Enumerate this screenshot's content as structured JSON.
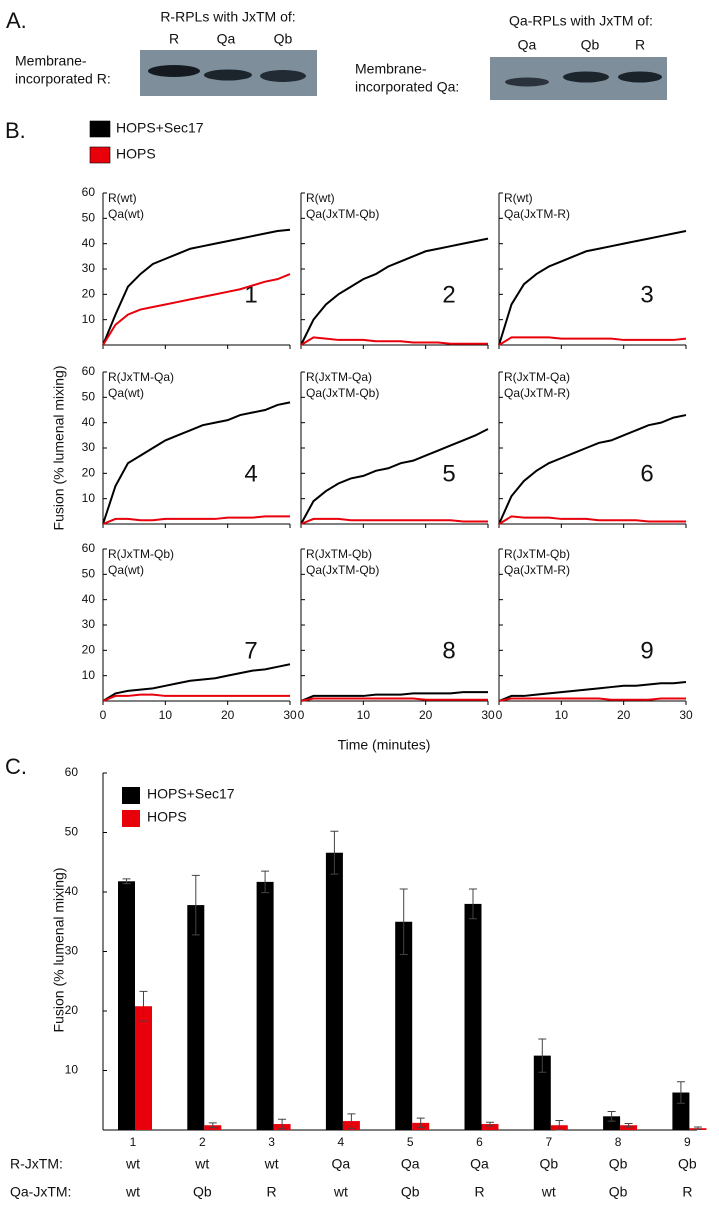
{
  "panel_a": {
    "label": "A.",
    "blots": [
      {
        "title": "R-RPLs with JxTM of:",
        "lanes": [
          "R",
          "Qa",
          "Qb"
        ],
        "row_label": [
          "Membrane-",
          "incorporated R:"
        ]
      },
      {
        "title": "Qa-RPLs with JxTM of:",
        "lanes": [
          "Qa",
          "Qb",
          "R"
        ],
        "row_label": [
          "Membrane-",
          "incorporated Qa:"
        ]
      }
    ]
  },
  "chart_data": [
    {
      "type": "line",
      "panel_label": "B.",
      "xlabel": "Time (minutes)",
      "ylabel": "Fusion (% lumenal mixing)",
      "legend": [
        {
          "name": "HOPS+Sec17",
          "color": "#000000"
        },
        {
          "name": "HOPS",
          "color": "#e8000b"
        }
      ],
      "xlim": [
        0,
        30
      ],
      "ylim": [
        0,
        60
      ],
      "xticks": [
        0,
        10,
        20,
        30
      ],
      "yticks": [
        10,
        20,
        30,
        40,
        50,
        60
      ],
      "x": [
        0,
        2,
        4,
        6,
        8,
        10,
        12,
        14,
        16,
        18,
        20,
        22,
        24,
        26,
        28,
        30
      ],
      "panels": [
        {
          "annotation": [
            "R(wt)",
            "Qa(wt)"
          ],
          "number": "1",
          "series": [
            {
              "values": [
                0,
                12,
                23,
                28,
                32,
                34,
                36,
                38,
                39,
                40,
                41,
                42,
                43,
                44,
                45,
                45.5
              ]
            },
            {
              "values": [
                0,
                8,
                12,
                14,
                15,
                16,
                17,
                18,
                19,
                20,
                21,
                22,
                23.5,
                25,
                26,
                28
              ]
            }
          ]
        },
        {
          "annotation": [
            "R(wt)",
            "Qa(JxTM-Qb)"
          ],
          "number": "2",
          "series": [
            {
              "values": [
                0,
                10,
                16,
                20,
                23,
                26,
                28,
                31,
                33,
                35,
                37,
                38,
                39,
                40,
                41,
                42
              ]
            },
            {
              "values": [
                0,
                3,
                2.5,
                2,
                2,
                2,
                1.5,
                1.5,
                1.5,
                1,
                1,
                1,
                0.5,
                0.5,
                0.5,
                0.5
              ]
            }
          ]
        },
        {
          "annotation": [
            "R(wt)",
            "Qa(JxTM-R)"
          ],
          "number": "3",
          "series": [
            {
              "values": [
                0,
                16,
                24,
                28,
                31,
                33,
                35,
                37,
                38,
                39,
                40,
                41,
                42,
                43,
                44,
                45
              ]
            },
            {
              "values": [
                0,
                3,
                3,
                3,
                3,
                2.5,
                2.5,
                2.5,
                2.5,
                2.5,
                2,
                2,
                2,
                2,
                2,
                2.5
              ]
            }
          ]
        },
        {
          "annotation": [
            "R(JxTM-Qa)",
            "Qa(wt)"
          ],
          "number": "4",
          "series": [
            {
              "values": [
                0,
                15,
                24,
                27,
                30,
                33,
                35,
                37,
                39,
                40,
                41,
                43,
                44,
                45,
                47,
                48
              ]
            },
            {
              "values": [
                0,
                2,
                2,
                1.5,
                1.5,
                2,
                2,
                2,
                2,
                2,
                2.5,
                2.5,
                2.5,
                3,
                3,
                3
              ]
            }
          ]
        },
        {
          "annotation": [
            "R(JxTM-Qa)",
            "Qa(JxTM-Qb)"
          ],
          "number": "5",
          "series": [
            {
              "values": [
                0,
                9,
                13,
                16,
                18,
                19,
                21,
                22,
                24,
                25,
                27,
                29,
                31,
                33,
                35,
                37.5
              ]
            },
            {
              "values": [
                0,
                2,
                2,
                2,
                1.5,
                1.5,
                1.5,
                1.5,
                1.5,
                1.5,
                1.5,
                1.5,
                1.5,
                1,
                1,
                1
              ]
            }
          ]
        },
        {
          "annotation": [
            "R(JxTM-Qa)",
            "Qa(JxTM-R)"
          ],
          "number": "6",
          "series": [
            {
              "values": [
                0,
                11,
                17,
                21,
                24,
                26,
                28,
                30,
                32,
                33,
                35,
                37,
                39,
                40,
                42,
                43
              ]
            },
            {
              "values": [
                0,
                3,
                2.5,
                2.5,
                2.5,
                2,
                2,
                2,
                1.5,
                1.5,
                1.5,
                1.5,
                1,
                1,
                1,
                1
              ]
            }
          ]
        },
        {
          "annotation": [
            "R(JxTM-Qb)",
            "Qa(wt)"
          ],
          "number": "7",
          "series": [
            {
              "values": [
                0,
                3,
                4,
                4.5,
                5,
                6,
                7,
                8,
                8.5,
                9,
                10,
                11,
                12,
                12.5,
                13.5,
                14.5
              ]
            },
            {
              "values": [
                0,
                2,
                2,
                2.5,
                2.5,
                2,
                2,
                2,
                2,
                2,
                2,
                2,
                2,
                2,
                2,
                2
              ]
            }
          ]
        },
        {
          "annotation": [
            "R(JxTM-Qb)",
            "Qa(JxTM-Qb)"
          ],
          "number": "8",
          "series": [
            {
              "values": [
                0,
                2,
                2,
                2,
                2,
                2,
                2.5,
                2.5,
                2.5,
                3,
                3,
                3,
                3,
                3.5,
                3.5,
                3.5
              ]
            },
            {
              "values": [
                0,
                1,
                1,
                1,
                1,
                1,
                1,
                1,
                1,
                1,
                0.5,
                0.5,
                0.5,
                0.5,
                0.5,
                0.5
              ]
            }
          ]
        },
        {
          "annotation": [
            "R(JxTM-Qb)",
            "Qa(JxTM-R)"
          ],
          "number": "9",
          "series": [
            {
              "values": [
                0,
                2,
                2,
                2.5,
                3,
                3.5,
                4,
                4.5,
                5,
                5.5,
                6,
                6,
                6.5,
                7,
                7,
                7.5
              ]
            },
            {
              "values": [
                0,
                1,
                1,
                1,
                1,
                1,
                1,
                1,
                1,
                0.5,
                0.5,
                0.5,
                0.5,
                1,
                1,
                1
              ]
            }
          ]
        }
      ]
    },
    {
      "type": "bar",
      "panel_label": "C.",
      "ylabel": "Fusion (% lumenal mixing)",
      "ylim": [
        0,
        60
      ],
      "yticks": [
        10,
        20,
        30,
        40,
        50,
        60
      ],
      "categories": [
        "1",
        "2",
        "3",
        "4",
        "5",
        "6",
        "7",
        "8",
        "9"
      ],
      "series": [
        {
          "name": "HOPS+Sec17",
          "color": "#000000",
          "values": [
            41.8,
            37.8,
            41.7,
            46.6,
            35,
            38,
            12.5,
            2.3,
            6.3
          ],
          "errors": [
            0.4,
            5,
            1.8,
            3.6,
            5.5,
            2.5,
            2.8,
            0.8,
            1.8
          ]
        },
        {
          "name": "HOPS",
          "color": "#e8000b",
          "values": [
            20.8,
            0.8,
            1,
            1.5,
            1.2,
            1,
            0.8,
            0.8,
            0.3
          ],
          "errors": [
            2.5,
            0.4,
            0.8,
            1.2,
            0.8,
            0.3,
            0.8,
            0.3,
            0.2
          ]
        }
      ],
      "rows": [
        {
          "label": "R-JxTM:",
          "values": [
            "wt",
            "wt",
            "wt",
            "Qa",
            "Qa",
            "Qa",
            "Qb",
            "Qb",
            "Qb"
          ]
        },
        {
          "label": "Qa-JxTM:",
          "values": [
            "wt",
            "Qb",
            "R",
            "wt",
            "Qb",
            "R",
            "wt",
            "Qb",
            "R"
          ]
        }
      ]
    }
  ]
}
